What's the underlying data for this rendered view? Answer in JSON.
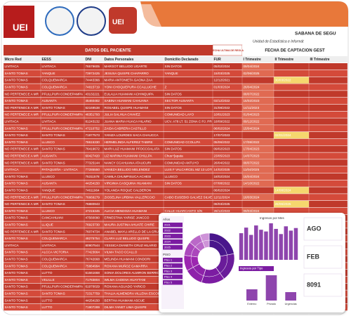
{
  "header": {
    "logo_text": "UEI",
    "title": "SABANA DE SEGU",
    "subtitle": "Unidad de Estadística e Informát"
  },
  "table": {
    "group_headers": [
      "DATOS DEL PACIENTE",
      "FECHA ULTIMA DE REGLA",
      "FECHA DE CAPTACION GEST"
    ],
    "columns": [
      "Micro Red",
      "EESS",
      "DNI",
      "Datos Personales",
      "Domicilio Declarado",
      "FUR",
      "I Trimestre",
      "II Trimestre",
      "III Trimestre"
    ],
    "rows": [
      [
        "LIVITACA",
        "LIVITACA",
        "76579605",
        "MARGOT BELLIDO UGARTE",
        "SIN DATOS",
        "05/02/2024",
        "09/04/2024",
        null,
        null
      ],
      [
        "SANTO TOMAS",
        "YANQUE",
        "73972425",
        "JESUSA QUISPE CHAPARRO",
        "YANQUE",
        "15/03/2025",
        "02/06/2025",
        null,
        null
      ],
      [
        "SANTO TOMAS",
        "COLQUEMARCA",
        "74443366",
        "MARIA ANTONIETA GAONA ZAA",
        null,
        "12/12/2021",
        null,
        "30/03/2022",
        null
      ],
      [
        "SANTO TOMAS",
        "COLQUEMARCA",
        "74815719",
        "YONI CHOQUEPURA CCALLUCHE",
        "Z",
        "01/03/2024",
        "26/04/2024",
        null,
        null
      ],
      [
        "NO PERTENECE A MR",
        "PFULLPURI CONDEPAMPA",
        "43132221",
        "EULALIA HUAMANI ACHINQUIPA",
        "SIN DATOS",
        null,
        "08/07/2022",
        null,
        null
      ],
      [
        "SANTO TOMAS",
        "AUSANTA",
        "45460482",
        "SABINA HUAMANI CAHUANA",
        "SECTOR AUSANTA",
        "03/12/2022",
        "15/02/2023",
        null,
        null
      ],
      [
        "NO PERTENECE A MR",
        "SANTO TOMAS",
        "62169538",
        "ROSABEL QUISPE HUAMANI",
        "SIN DATOS",
        "31/08/2022",
        "14/11/2023",
        null,
        null
      ],
      [
        "NO PERTENECE A MR",
        "PFULLPURI CONDEPAMPA",
        "46351793",
        "JULIA SALHUA CHAVEZ",
        "COMUNIDAD LAYO",
        "10/01/2023",
        "01/04/2023",
        null,
        null
      ],
      [
        "LIVITACA",
        "LIVITACA",
        "81243132",
        "JUANA MARIA HUACA HILARIO",
        "UCV. A78 LT. 51 ZONA C PJ. PROV",
        "18/09/2022",
        "09/12/2022",
        null,
        null
      ],
      [
        "SANTO TOMAS",
        "PFULLPURI CONDEPAMPA",
        "47210752",
        "ZAIDA CABRERA CASTILLO",
        null,
        "06/02/2024",
        "15/04/2024",
        null,
        null
      ],
      [
        "SANTO TOMAS",
        "SANTO TOMAS",
        "71977573",
        "YANIZA LOURDES SACA CHAUCCA",
        null,
        "17/07/2023",
        null,
        "02/01/2024",
        null
      ],
      [
        "SANTO TOMAS",
        "LLUSCO",
        "78615330",
        "HERMELINDA ALFEREZ TABIRE",
        "COMUNIDAD CCOLLPA",
        "05/06/2022",
        "17/08/2022",
        null,
        null
      ],
      [
        "NO PERTENECE A MR",
        "SANTO TOMAS",
        "76419672",
        "MARI LUZ HUAMANI PFOCCOALATA",
        "SIN DATOS",
        "09/02/2023",
        "17/04/2023",
        null,
        null
      ],
      [
        "NO PERTENECE A MR",
        "AUSANTA",
        "60427420",
        "LIZ MARINA HUAMANI CHILLPA",
        "Chus+]apata",
        "23/05/2023",
        "14/07/2023",
        null,
        null
      ],
      [
        "NO PERTENECE A MR",
        "SANTO TOMAS",
        "77325144",
        "NANCY CCAHUANA ATAUCURI",
        "COMUNIDAD ANTUYO",
        "26/04/2022",
        "08/07/2022",
        null,
        null
      ],
      [
        "LIVITACA",
        "PATAQUEÑA - LIVITACA",
        "77285550",
        "VANEZA BELLIDO MELENDEZ",
        "LUIS F VALCARCEL MZ 13 LOTE",
        "14/02/2025",
        "11/04/2025",
        null,
        null
      ],
      [
        "SANTO TOMAS",
        "LLUSCO",
        "75311578",
        "CAMILA CHUMPISUCA ACHESI",
        "LLUSCO",
        "18/02/2024",
        "15/04/2024",
        null,
        null
      ],
      [
        "SANTO TOMAS",
        "AUSANTA",
        "44254150",
        "VIRGINIA CASQUINA HUAMANI",
        "SIN DATOS",
        "07/08/2022",
        "14/10/2022",
        null,
        null
      ],
      [
        "SANTO TOMAS",
        "YANQUE",
        "74611964",
        "YOLANDA ROQUE CALDERON",
        null,
        "06/02/2024",
        null,
        "14/08/2024",
        null
      ],
      [
        "NO PERTENECE A MR",
        "PFULLPURI CONDEPAMPA",
        "76669279",
        "ZIOSELINA URBINA VALLERCCIO",
        "CABO EUSEBIO GALVEZ SILVE",
        "12/11/2024",
        "16/03/2024",
        null,
        null
      ],
      [
        "NO PERTENECE A MR",
        "SANTO TOMAS",
        "76880943",
        null,
        null,
        "06/03/2025",
        null,
        "26/06/2025",
        null
      ],
      [
        "SANTO TOMAS",
        "LLUSCO",
        "47215345",
        "ALICIA MENDOZA HUAMANI",
        "CALLE HUARCANTO S/N",
        "28/12/2023",
        "09/03/2024",
        null,
        null
      ],
      [
        "SANTO TOMAS",
        "CANCAHUANI",
        "47560090",
        "ERNESTINA YARISE JANCCO",
        "cancahuani",
        "28/11/2023",
        "06/02/2024",
        null,
        null
      ],
      [
        "SANTO TOMAS",
        "LLIQUE",
        "76923730",
        "MAURA JUSTINA AHUATE CHIRE",
        "VISCA VISCA",
        "09/04/2022",
        "16/06/2022",
        null,
        null
      ],
      [
        "NO PERTENECE A MR",
        "SANTO TOMAS",
        "76074734",
        "ANABEL MAYLI ARELLO DE LA CRUZ",
        "SODACQUE",
        "03/12/2021",
        "23/01/2022",
        null,
        null
      ],
      [
        "SANTO TOMAS",
        "COLQUEMARCA",
        "48275754",
        "CLARA LUZ BELLIDO QUISPE",
        "SIN DATOS",
        null,
        null,
        "07/08/2023",
        null
      ],
      [
        "LIVITACA",
        "LIVITACA",
        "80907544",
        "YESSICA DIANETH CRUZ HILARIO",
        "COMUNIDAD CCOLLANA",
        "19/03/2025",
        "05/06/2025",
        null,
        null
      ],
      [
        "SANTO TOMAS",
        "ALCCA VICTORIA",
        "77423664",
        "VILMA TACO CCALLO",
        null,
        null,
        null,
        null,
        null
      ],
      [
        "SANTO TOMAS",
        "COLQUEMARCA",
        "76742668",
        "MELINDA HUAMANI CONDORI",
        null,
        null,
        null,
        null,
        null
      ],
      [
        "SANTO TOMAS",
        "COLQUEMARCA",
        "75864994",
        "ROXANA MUÑOZ GAMARRA",
        null,
        null,
        null,
        null,
        null
      ],
      [
        "SANTO TOMAS",
        "LUTTO",
        "61561668",
        "SONIA DOLORES ALMIRON BERRIO",
        null,
        null,
        null,
        null,
        null
      ],
      [
        "SANTO TOMAS",
        "VELILLE",
        "71783804",
        "WILMA CADENA HUAYTANI",
        null,
        null,
        null,
        null,
        null
      ],
      [
        "SANTO TOMAS",
        "PFULLPURI CONDEPAMPA",
        "61970029",
        "ROXANA AGUADO YARICO",
        null,
        null,
        null,
        null,
        null
      ],
      [
        "SANTO TOMAS",
        "SANTO TOMAS",
        "72317759",
        "THALIA ALMENDRA VILLENA ESCOBEDO",
        null,
        null,
        null,
        null,
        null
      ],
      [
        "SANTO TOMAS",
        "LUTTO",
        "44254150",
        "BERTHA HUAMANI ASCUE",
        null,
        null,
        null,
        null,
        null
      ],
      [
        "SANTO TOMAS",
        "LUTTO",
        "71907289",
        "DILMA YANET LIMA QUISPE",
        null,
        null,
        null,
        null,
        null
      ]
    ]
  },
  "dashboard": {
    "years_title": "Años",
    "years": [
      "2021",
      "2022",
      "2023",
      "2024",
      "2025"
    ],
    "floor_title": "PISO",
    "floors": [
      "Piso 1",
      "Piso 2",
      "Piso 3",
      "Piso 4",
      "Piso 5"
    ],
    "donut": {
      "type": "pie",
      "values": [
        22,
        18,
        15,
        12,
        10,
        9,
        8,
        6
      ],
      "colors": [
        "#4a148c",
        "#6a1b9a",
        "#7b1fa2",
        "#8e24aa",
        "#9c27b0",
        "#ab47bc",
        "#ba68c8",
        "#ce93d8"
      ]
    },
    "monthly": {
      "type": "bar",
      "title": "Ingresos por Mes",
      "values": [
        62,
        75,
        58,
        80,
        70,
        66,
        85,
        72,
        60,
        78,
        68,
        74
      ],
      "color": "#8e44ad"
    },
    "by_type": {
      "type": "bar",
      "title": "Ingresos por Tipo",
      "categories": [
        "Externo",
        "Privado",
        "Urgencias"
      ],
      "values": [
        20,
        45,
        15
      ],
      "color": "#8e44ad"
    },
    "kpis": [
      "AGO",
      "FEB",
      "8091"
    ]
  }
}
